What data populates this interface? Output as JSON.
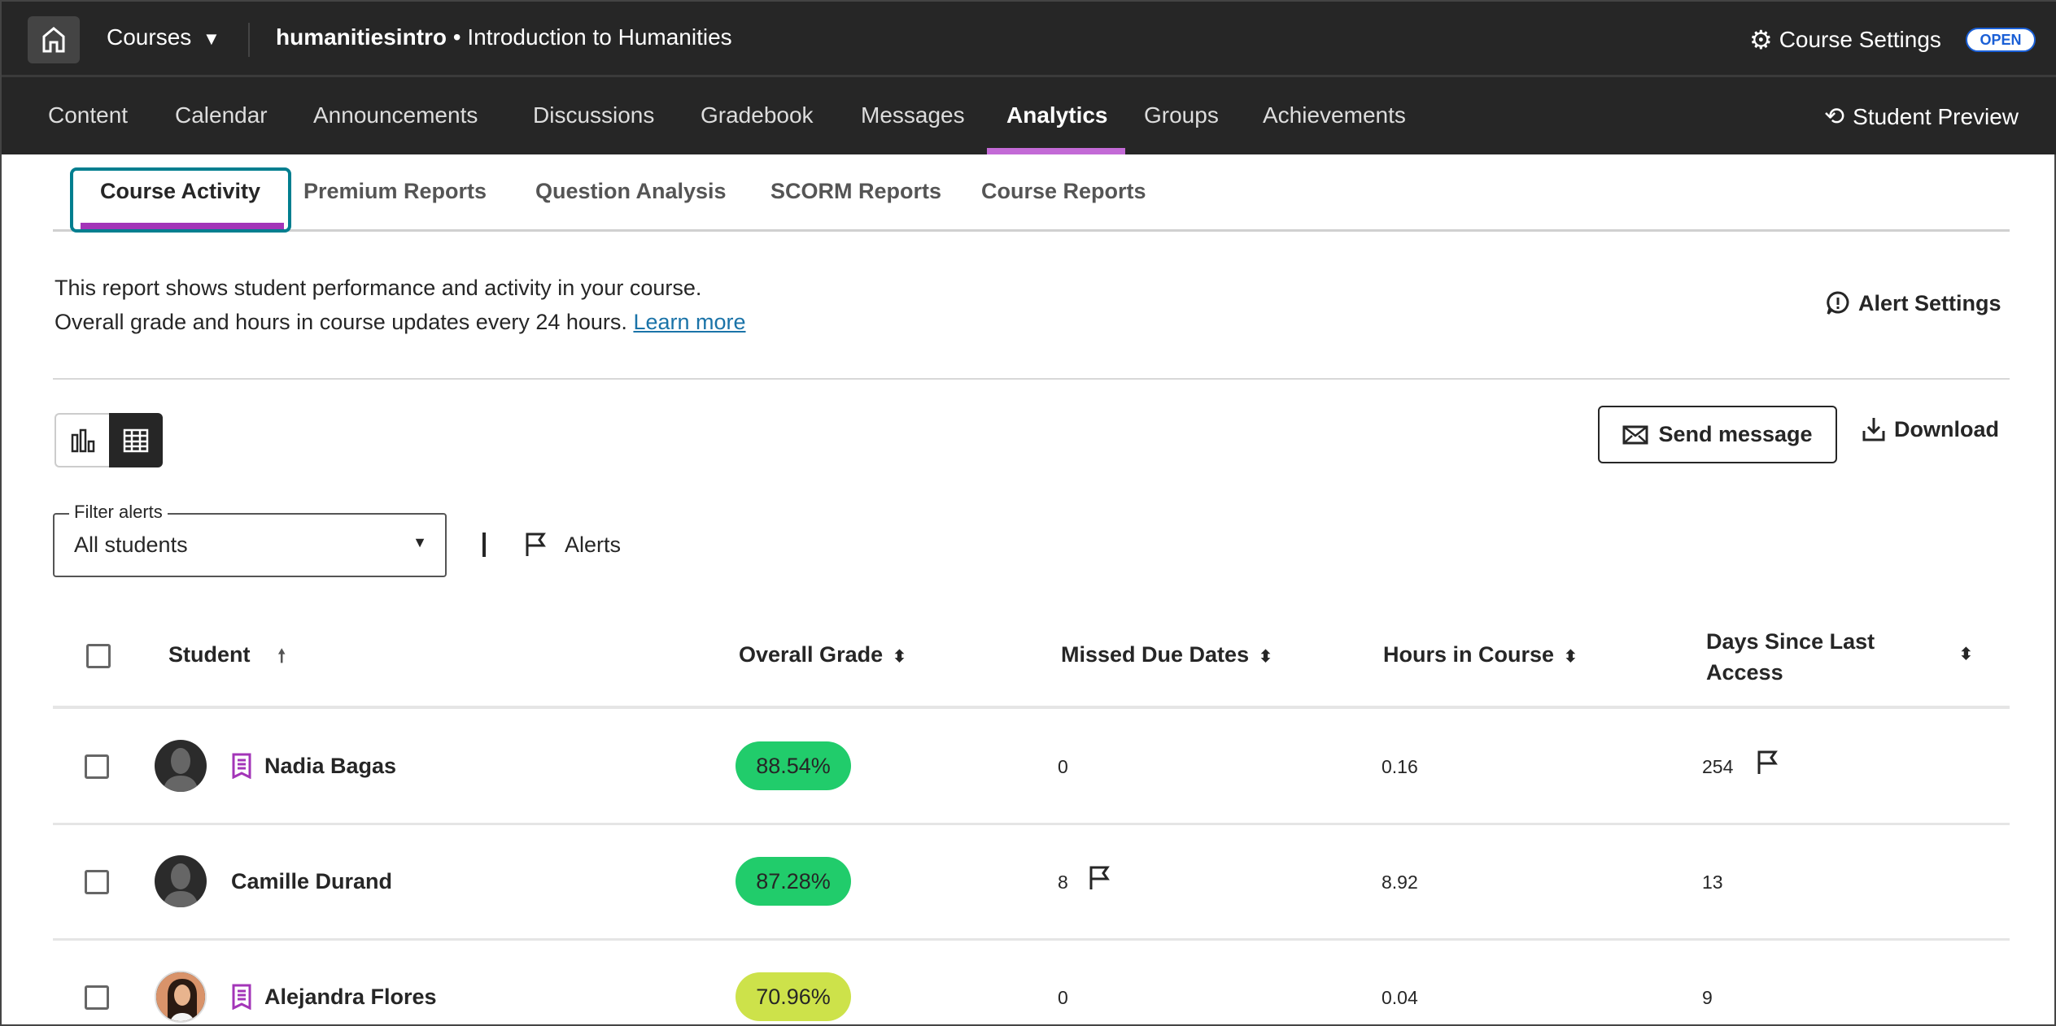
{
  "header": {
    "courses_label": "Courses",
    "course_code": "humanitiesintro",
    "course_sep": " • ",
    "course_name": "Introduction to Humanities",
    "settings_label": "Course Settings",
    "status_badge": "OPEN"
  },
  "nav": {
    "items": [
      "Content",
      "Calendar",
      "Announcements",
      "Discussions",
      "Gradebook",
      "Messages",
      "Analytics",
      "Groups",
      "Achievements"
    ],
    "active": "Analytics",
    "student_preview": "Student Preview"
  },
  "subtabs": {
    "items": [
      "Course Activity",
      "Premium Reports",
      "Question Analysis",
      "SCORM Reports",
      "Course Reports"
    ],
    "active": "Course Activity"
  },
  "description": {
    "line1": "This report shows student performance and activity in your course.",
    "line2": "Overall grade and hours in course updates every 24 hours.",
    "learn_more": "Learn more",
    "alert_settings": "Alert Settings"
  },
  "toolbar": {
    "send_message": "Send message",
    "download": "Download",
    "view": "table"
  },
  "filter": {
    "label": "Filter alerts",
    "value": "All students",
    "alerts_label": "Alerts"
  },
  "table": {
    "columns": [
      "Student",
      "Overall Grade",
      "Missed Due Dates",
      "Hours in Course",
      "Days Since Last Access"
    ],
    "rows": [
      {
        "name": "Nadia Bagas",
        "grade": "88.54%",
        "grade_color": "#21cc6b",
        "missed": "0",
        "hours": "0.16",
        "days": "254",
        "accommodation": true,
        "missed_flag": false,
        "days_flag": true
      },
      {
        "name": "Camille Durand",
        "grade": "87.28%",
        "grade_color": "#21cc6b",
        "missed": "8",
        "hours": "8.92",
        "days": "13",
        "accommodation": false,
        "missed_flag": true,
        "days_flag": false
      },
      {
        "name": "Alejandra Flores",
        "grade": "70.96%",
        "grade_color": "#cde24a",
        "missed": "0",
        "hours": "0.04",
        "days": "9",
        "accommodation": true,
        "missed_flag": false,
        "days_flag": false
      }
    ]
  },
  "colors": {
    "accent": "#a335b8",
    "focus": "#007e8f",
    "badge": "#1a5fd6"
  }
}
